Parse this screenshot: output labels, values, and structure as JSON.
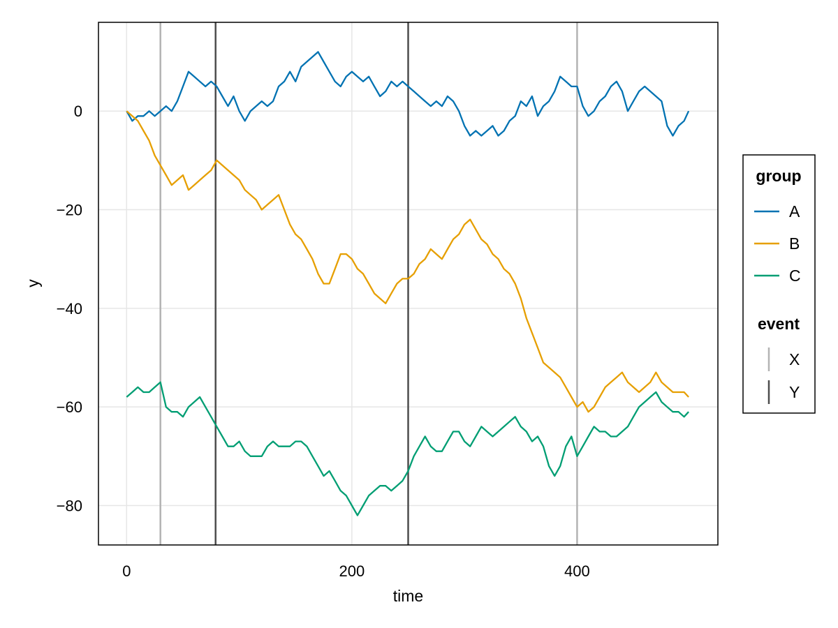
{
  "chart_data": {
    "type": "line",
    "xlabel": "time",
    "ylabel": "y",
    "xlim": [
      -25,
      525
    ],
    "ylim": [
      -88,
      18
    ],
    "xticks": [
      0,
      200,
      400
    ],
    "yticks": [
      0,
      -20,
      -40,
      -60,
      -80
    ],
    "xtick_labels": [
      "0",
      "200",
      "400"
    ],
    "ytick_labels": [
      "0",
      "−20",
      "−40",
      "−60",
      "−80"
    ],
    "grid": true,
    "legend_placement": "right",
    "series": [
      {
        "name": "A",
        "color": "#0072B2",
        "points": [
          [
            0,
            0
          ],
          [
            5,
            -2
          ],
          [
            10,
            -1
          ],
          [
            15,
            -1
          ],
          [
            20,
            0
          ],
          [
            25,
            -1
          ],
          [
            30,
            0
          ],
          [
            35,
            1
          ],
          [
            40,
            0
          ],
          [
            45,
            2
          ],
          [
            50,
            5
          ],
          [
            55,
            8
          ],
          [
            60,
            7
          ],
          [
            65,
            6
          ],
          [
            70,
            5
          ],
          [
            75,
            6
          ],
          [
            80,
            5
          ],
          [
            85,
            3
          ],
          [
            90,
            1
          ],
          [
            95,
            3
          ],
          [
            100,
            0
          ],
          [
            105,
            -2
          ],
          [
            110,
            0
          ],
          [
            115,
            1
          ],
          [
            120,
            2
          ],
          [
            125,
            1
          ],
          [
            130,
            2
          ],
          [
            135,
            5
          ],
          [
            140,
            6
          ],
          [
            145,
            8
          ],
          [
            150,
            6
          ],
          [
            155,
            9
          ],
          [
            160,
            10
          ],
          [
            165,
            11
          ],
          [
            170,
            12
          ],
          [
            175,
            10
          ],
          [
            180,
            8
          ],
          [
            185,
            6
          ],
          [
            190,
            5
          ],
          [
            195,
            7
          ],
          [
            200,
            8
          ],
          [
            205,
            7
          ],
          [
            210,
            6
          ],
          [
            215,
            7
          ],
          [
            220,
            5
          ],
          [
            225,
            3
          ],
          [
            230,
            4
          ],
          [
            235,
            6
          ],
          [
            240,
            5
          ],
          [
            245,
            6
          ],
          [
            250,
            5
          ],
          [
            255,
            4
          ],
          [
            260,
            3
          ],
          [
            265,
            2
          ],
          [
            270,
            1
          ],
          [
            275,
            2
          ],
          [
            280,
            1
          ],
          [
            285,
            3
          ],
          [
            290,
            2
          ],
          [
            295,
            0
          ],
          [
            300,
            -3
          ],
          [
            305,
            -5
          ],
          [
            310,
            -4
          ],
          [
            315,
            -5
          ],
          [
            320,
            -4
          ],
          [
            325,
            -3
          ],
          [
            330,
            -5
          ],
          [
            335,
            -4
          ],
          [
            340,
            -2
          ],
          [
            345,
            -1
          ],
          [
            350,
            2
          ],
          [
            355,
            1
          ],
          [
            360,
            3
          ],
          [
            365,
            -1
          ],
          [
            370,
            1
          ],
          [
            375,
            2
          ],
          [
            380,
            4
          ],
          [
            385,
            7
          ],
          [
            390,
            6
          ],
          [
            395,
            5
          ],
          [
            400,
            5
          ],
          [
            405,
            1
          ],
          [
            410,
            -1
          ],
          [
            415,
            0
          ],
          [
            420,
            2
          ],
          [
            425,
            3
          ],
          [
            430,
            5
          ],
          [
            435,
            6
          ],
          [
            440,
            4
          ],
          [
            445,
            0
          ],
          [
            450,
            2
          ],
          [
            455,
            4
          ],
          [
            460,
            5
          ],
          [
            465,
            4
          ],
          [
            470,
            3
          ],
          [
            475,
            2
          ],
          [
            480,
            -3
          ],
          [
            485,
            -5
          ],
          [
            490,
            -3
          ],
          [
            495,
            -2
          ],
          [
            499,
            0
          ]
        ]
      },
      {
        "name": "B",
        "color": "#E69F00",
        "points": [
          [
            0,
            0
          ],
          [
            5,
            -1
          ],
          [
            10,
            -2
          ],
          [
            15,
            -4
          ],
          [
            20,
            -6
          ],
          [
            25,
            -9
          ],
          [
            30,
            -11
          ],
          [
            35,
            -13
          ],
          [
            40,
            -15
          ],
          [
            45,
            -14
          ],
          [
            50,
            -13
          ],
          [
            55,
            -16
          ],
          [
            60,
            -15
          ],
          [
            65,
            -14
          ],
          [
            70,
            -13
          ],
          [
            75,
            -12
          ],
          [
            80,
            -10
          ],
          [
            85,
            -11
          ],
          [
            90,
            -12
          ],
          [
            95,
            -13
          ],
          [
            100,
            -14
          ],
          [
            105,
            -16
          ],
          [
            110,
            -17
          ],
          [
            115,
            -18
          ],
          [
            120,
            -20
          ],
          [
            125,
            -19
          ],
          [
            130,
            -18
          ],
          [
            135,
            -17
          ],
          [
            140,
            -20
          ],
          [
            145,
            -23
          ],
          [
            150,
            -25
          ],
          [
            155,
            -26
          ],
          [
            160,
            -28
          ],
          [
            165,
            -30
          ],
          [
            170,
            -33
          ],
          [
            175,
            -35
          ],
          [
            180,
            -35
          ],
          [
            185,
            -32
          ],
          [
            190,
            -29
          ],
          [
            195,
            -29
          ],
          [
            200,
            -30
          ],
          [
            205,
            -32
          ],
          [
            210,
            -33
          ],
          [
            215,
            -35
          ],
          [
            220,
            -37
          ],
          [
            225,
            -38
          ],
          [
            230,
            -39
          ],
          [
            235,
            -37
          ],
          [
            240,
            -35
          ],
          [
            245,
            -34
          ],
          [
            250,
            -34
          ],
          [
            255,
            -33
          ],
          [
            260,
            -31
          ],
          [
            265,
            -30
          ],
          [
            270,
            -28
          ],
          [
            275,
            -29
          ],
          [
            280,
            -30
          ],
          [
            285,
            -28
          ],
          [
            290,
            -26
          ],
          [
            295,
            -25
          ],
          [
            300,
            -23
          ],
          [
            305,
            -22
          ],
          [
            310,
            -24
          ],
          [
            315,
            -26
          ],
          [
            320,
            -27
          ],
          [
            325,
            -29
          ],
          [
            330,
            -30
          ],
          [
            335,
            -32
          ],
          [
            340,
            -33
          ],
          [
            345,
            -35
          ],
          [
            350,
            -38
          ],
          [
            355,
            -42
          ],
          [
            360,
            -45
          ],
          [
            365,
            -48
          ],
          [
            370,
            -51
          ],
          [
            375,
            -52
          ],
          [
            380,
            -53
          ],
          [
            385,
            -54
          ],
          [
            390,
            -56
          ],
          [
            395,
            -58
          ],
          [
            400,
            -60
          ],
          [
            405,
            -59
          ],
          [
            410,
            -61
          ],
          [
            415,
            -60
          ],
          [
            420,
            -58
          ],
          [
            425,
            -56
          ],
          [
            430,
            -55
          ],
          [
            435,
            -54
          ],
          [
            440,
            -53
          ],
          [
            445,
            -55
          ],
          [
            450,
            -56
          ],
          [
            455,
            -57
          ],
          [
            460,
            -56
          ],
          [
            465,
            -55
          ],
          [
            470,
            -53
          ],
          [
            475,
            -55
          ],
          [
            480,
            -56
          ],
          [
            485,
            -57
          ],
          [
            490,
            -57
          ],
          [
            495,
            -57
          ],
          [
            499,
            -58
          ]
        ]
      },
      {
        "name": "C",
        "color": "#009E73",
        "points": [
          [
            0,
            -58
          ],
          [
            5,
            -57
          ],
          [
            10,
            -56
          ],
          [
            15,
            -57
          ],
          [
            20,
            -57
          ],
          [
            25,
            -56
          ],
          [
            30,
            -55
          ],
          [
            35,
            -60
          ],
          [
            40,
            -61
          ],
          [
            45,
            -61
          ],
          [
            50,
            -62
          ],
          [
            55,
            -60
          ],
          [
            60,
            -59
          ],
          [
            65,
            -58
          ],
          [
            70,
            -60
          ],
          [
            75,
            -62
          ],
          [
            80,
            -64
          ],
          [
            85,
            -66
          ],
          [
            90,
            -68
          ],
          [
            95,
            -68
          ],
          [
            100,
            -67
          ],
          [
            105,
            -69
          ],
          [
            110,
            -70
          ],
          [
            115,
            -70
          ],
          [
            120,
            -70
          ],
          [
            125,
            -68
          ],
          [
            130,
            -67
          ],
          [
            135,
            -68
          ],
          [
            140,
            -68
          ],
          [
            145,
            -68
          ],
          [
            150,
            -67
          ],
          [
            155,
            -67
          ],
          [
            160,
            -68
          ],
          [
            165,
            -70
          ],
          [
            170,
            -72
          ],
          [
            175,
            -74
          ],
          [
            180,
            -73
          ],
          [
            185,
            -75
          ],
          [
            190,
            -77
          ],
          [
            195,
            -78
          ],
          [
            200,
            -80
          ],
          [
            205,
            -82
          ],
          [
            210,
            -80
          ],
          [
            215,
            -78
          ],
          [
            220,
            -77
          ],
          [
            225,
            -76
          ],
          [
            230,
            -76
          ],
          [
            235,
            -77
          ],
          [
            240,
            -76
          ],
          [
            245,
            -75
          ],
          [
            250,
            -73
          ],
          [
            255,
            -70
          ],
          [
            260,
            -68
          ],
          [
            265,
            -66
          ],
          [
            270,
            -68
          ],
          [
            275,
            -69
          ],
          [
            280,
            -69
          ],
          [
            285,
            -67
          ],
          [
            290,
            -65
          ],
          [
            295,
            -65
          ],
          [
            300,
            -67
          ],
          [
            305,
            -68
          ],
          [
            310,
            -66
          ],
          [
            315,
            -64
          ],
          [
            320,
            -65
          ],
          [
            325,
            -66
          ],
          [
            330,
            -65
          ],
          [
            335,
            -64
          ],
          [
            340,
            -63
          ],
          [
            345,
            -62
          ],
          [
            350,
            -64
          ],
          [
            355,
            -65
          ],
          [
            360,
            -67
          ],
          [
            365,
            -66
          ],
          [
            370,
            -68
          ],
          [
            375,
            -72
          ],
          [
            380,
            -74
          ],
          [
            385,
            -72
          ],
          [
            390,
            -68
          ],
          [
            395,
            -66
          ],
          [
            400,
            -70
          ],
          [
            405,
            -68
          ],
          [
            410,
            -66
          ],
          [
            415,
            -64
          ],
          [
            420,
            -65
          ],
          [
            425,
            -65
          ],
          [
            430,
            -66
          ],
          [
            435,
            -66
          ],
          [
            440,
            -65
          ],
          [
            445,
            -64
          ],
          [
            450,
            -62
          ],
          [
            455,
            -60
          ],
          [
            460,
            -59
          ],
          [
            465,
            -58
          ],
          [
            470,
            -57
          ],
          [
            475,
            -59
          ],
          [
            480,
            -60
          ],
          [
            485,
            -61
          ],
          [
            490,
            -61
          ],
          [
            495,
            -62
          ],
          [
            499,
            -61
          ]
        ]
      }
    ],
    "events": [
      {
        "type": "X",
        "x": 30,
        "color": "#B3B3B3"
      },
      {
        "type": "Y",
        "x": 79,
        "color": "#4D4D4D"
      },
      {
        "type": "Y",
        "x": 250,
        "color": "#4D4D4D"
      },
      {
        "type": "X",
        "x": 400,
        "color": "#B3B3B3"
      }
    ],
    "legend": {
      "group_title": "group",
      "group_items": [
        {
          "label": "A",
          "color": "#0072B2"
        },
        {
          "label": "B",
          "color": "#E69F00"
        },
        {
          "label": "C",
          "color": "#009E73"
        }
      ],
      "event_title": "event",
      "event_items": [
        {
          "label": "X",
          "color": "#B3B3B3"
        },
        {
          "label": "Y",
          "color": "#4D4D4D"
        }
      ]
    }
  }
}
